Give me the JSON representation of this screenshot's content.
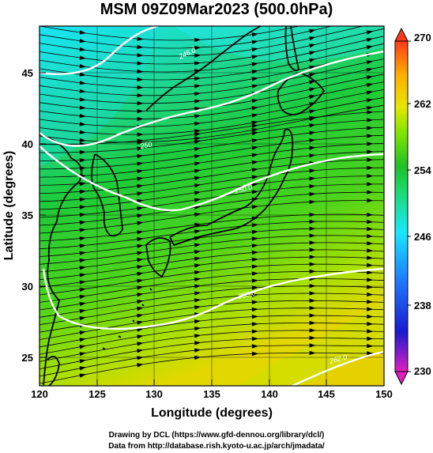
{
  "title": "MSM 09Z09Mar2023 (500.0hPa)",
  "xlabel": "Longitude (degrees)",
  "ylabel": "Latitude (degrees)",
  "credit_line1": "Drawing by DCL (https://www.gfd-dennou.org/library/dcl/)",
  "credit_line2": "Data from http://database.rish.kyoto-u.ac.jp/arch/jmadata/",
  "map": {
    "lon_range": [
      120,
      150
    ],
    "lat_range": [
      22.4,
      47.6
    ],
    "lon_ticks": [
      "120",
      "125",
      "130",
      "135",
      "140",
      "145",
      "150"
    ],
    "lat_ticks": [
      "25",
      "30",
      "35",
      "40",
      "45"
    ],
    "contour_labels": [
      "246.0",
      "250",
      "250.0",
      "258.0",
      "262.0"
    ],
    "field": "temperature",
    "flow": "westerly streamlines"
  },
  "colorbar": {
    "range": [
      230,
      270
    ],
    "tick_labels": [
      "270",
      "262",
      "254",
      "246",
      "238",
      "230"
    ],
    "colors": [
      "#e01fc0",
      "#1a1ad0",
      "#1e7cff",
      "#19e8ff",
      "#1ed86a",
      "#1fbf2a",
      "#7ee400",
      "#e6e600",
      "#ffae00",
      "#ff3a1a"
    ]
  }
}
